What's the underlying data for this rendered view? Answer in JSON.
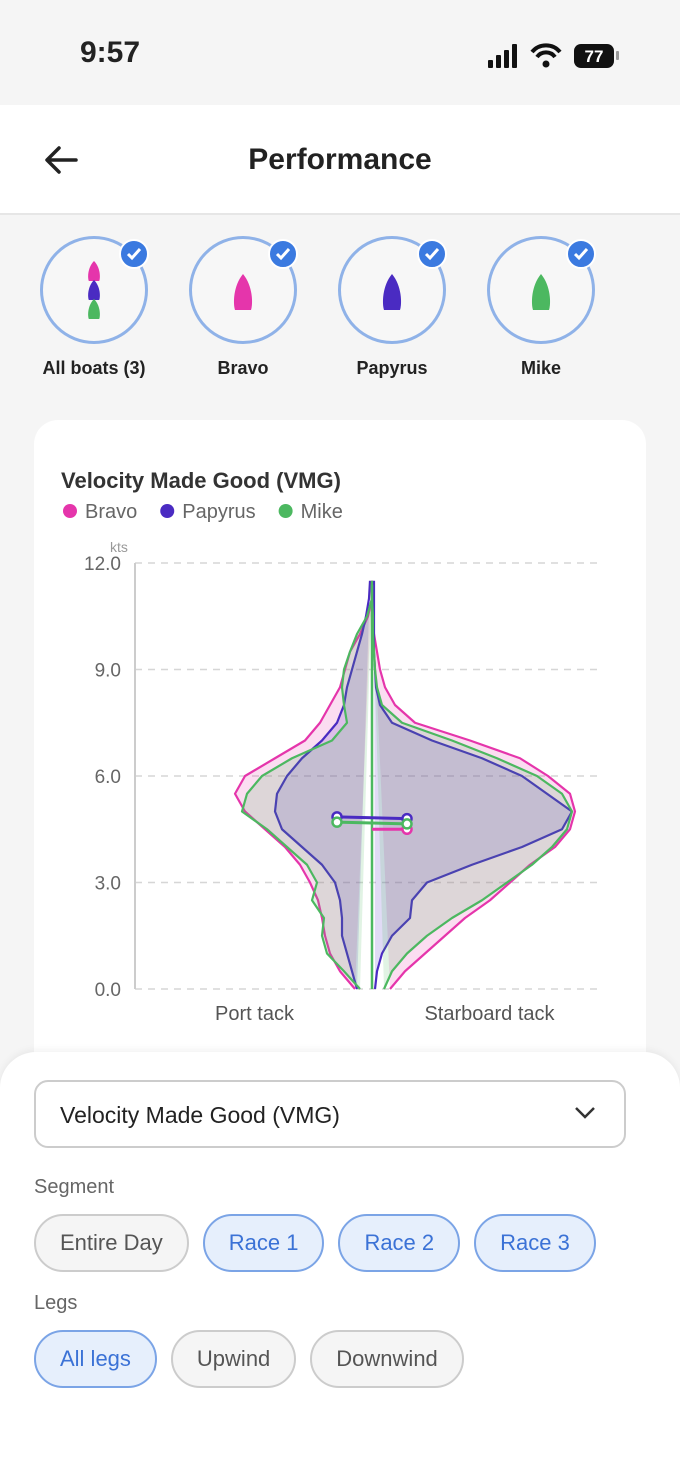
{
  "status_bar": {
    "time": "9:57",
    "battery": "77"
  },
  "header": {
    "title": "Performance"
  },
  "boats": [
    {
      "label": "All boats (3)",
      "selected": true
    },
    {
      "label": "Bravo",
      "selected": true,
      "color": "#e535ab"
    },
    {
      "label": "Papyrus",
      "selected": true,
      "color": "#4a2bc2"
    },
    {
      "label": "Mike",
      "selected": true,
      "color": "#4cb860"
    }
  ],
  "chart_data": {
    "type": "violin",
    "title": "Velocity Made Good (VMG)",
    "y_unit": "kts",
    "categories": [
      "Port tack",
      "Starboard tack"
    ],
    "ylim": [
      0,
      12
    ],
    "yticks": [
      {
        "value": 0,
        "label": "0.0"
      },
      {
        "value": 3,
        "label": "3.0"
      },
      {
        "value": 6,
        "label": "6.0"
      },
      {
        "value": 9,
        "label": "9.0"
      },
      {
        "value": 12,
        "label": "12.0"
      }
    ],
    "grid": true,
    "y": [
      0,
      0.5,
      1,
      1.5,
      2,
      2.5,
      3,
      3.5,
      4,
      4.5,
      5,
      5.5,
      6,
      6.5,
      7,
      7.5,
      8,
      8.5,
      9,
      9.5,
      10,
      10.5,
      11,
      11.5
    ],
    "series": [
      {
        "name": "Bravo",
        "color": "#e535ab",
        "means": [
          null,
          4.5
        ],
        "port": [
          8.5,
          16,
          21,
          23.5,
          25,
          27,
          31,
          36,
          43.5,
          53.5,
          63.5,
          68.5,
          63.5,
          48.5,
          33.5,
          26,
          21,
          16,
          13.5,
          11,
          6,
          2,
          0,
          0
        ],
        "starboard": [
          9,
          16.5,
          26.5,
          36.5,
          46.5,
          59,
          69,
          79,
          91.5,
          99,
          101.5,
          99,
          88,
          74,
          49,
          21.5,
          11.5,
          6.5,
          4,
          2.5,
          1,
          0,
          0,
          0
        ]
      },
      {
        "name": "Papyrus",
        "color": "#4a2bc2",
        "means": [
          4.85,
          4.8
        ],
        "port": [
          7.5,
          10,
          12.5,
          15,
          15,
          16,
          18.5,
          25,
          35,
          45,
          48.5,
          47.5,
          42.5,
          35,
          25,
          17.5,
          14,
          12.5,
          10,
          7.5,
          5,
          3,
          1.5,
          1
        ],
        "starboard": [
          1.5,
          2.5,
          5,
          10,
          19,
          20,
          27.5,
          50,
          75,
          95,
          100,
          87.5,
          75,
          55,
          30,
          10,
          4,
          2,
          1.5,
          1,
          1,
          1,
          1,
          1
        ]
      },
      {
        "name": "Mike",
        "color": "#4cb860",
        "means": [
          4.7,
          4.65
        ],
        "port": [
          6,
          14,
          22.5,
          25,
          24,
          30,
          27.5,
          32.5,
          42.5,
          52.5,
          65,
          62.5,
          55,
          40,
          20,
          12.5,
          14,
          15,
          14,
          11,
          7.5,
          2.5,
          0,
          0
        ],
        "starboard": [
          6,
          10,
          17.5,
          27.5,
          40,
          55,
          67.5,
          80,
          90,
          97.5,
          100,
          95,
          82.5,
          62.5,
          40,
          15,
          5,
          2.5,
          1.5,
          1,
          0.5,
          0.5,
          0,
          0
        ]
      }
    ]
  },
  "metric_select": {
    "value": "Velocity Made Good (VMG)"
  },
  "segment": {
    "label": "Segment",
    "options": [
      {
        "label": "Entire Day",
        "selected": false
      },
      {
        "label": "Race 1",
        "selected": true
      },
      {
        "label": "Race 2",
        "selected": true
      },
      {
        "label": "Race 3",
        "selected": true
      }
    ]
  },
  "legs": {
    "label": "Legs",
    "options": [
      {
        "label": "All legs",
        "selected": true
      },
      {
        "label": "Upwind",
        "selected": false
      },
      {
        "label": "Downwind",
        "selected": false
      }
    ]
  }
}
